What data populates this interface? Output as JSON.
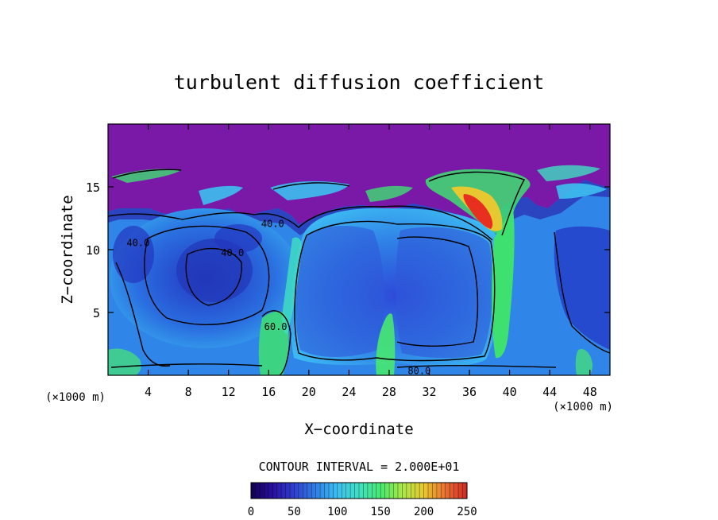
{
  "chart_data": {
    "type": "heatmap",
    "title": "turbulent diffusion coefficient",
    "xlabel": "X−coordinate",
    "ylabel": "Z−coordinate",
    "x_unit_left": "(×1000 m)",
    "x_unit_right": "(×1000 m)",
    "x_ticks": [
      4,
      8,
      12,
      16,
      20,
      24,
      28,
      32,
      36,
      40,
      44,
      48
    ],
    "y_ticks": [
      5,
      10,
      15
    ],
    "xlim": [
      0,
      50
    ],
    "ylim": [
      0,
      20
    ],
    "contour_interval_text": "CONTOUR INTERVAL = 2.000E+01",
    "contour_labels": [
      {
        "text": "40.0",
        "x": 16.4,
        "z": 11.8
      },
      {
        "text": "40.0",
        "x": 12.4,
        "z": 9.5
      },
      {
        "text": "40.0",
        "x": 3.0,
        "z": 10.3
      },
      {
        "text": "60.0",
        "x": 16.7,
        "z": 3.6
      },
      {
        "text": "80.0",
        "x": 31.0,
        "z": 0.1
      }
    ],
    "colorbar": {
      "min": 0,
      "max": 250,
      "ticks": [
        0,
        50,
        100,
        150,
        200,
        250
      ],
      "colors": [
        "#1a0a5e",
        "#2d1fa8",
        "#3a4fd8",
        "#2f86e8",
        "#3cc0f0",
        "#3fe0c0",
        "#48e870",
        "#a8e848",
        "#e8c830",
        "#e87030",
        "#d83030"
      ]
    },
    "colors": {
      "stratosphere": "#7a18a8",
      "core_blue": "#2a42c8",
      "mid_blue": "#1e78e0",
      "light_blue": "#3ab8f0",
      "green": "#3ee070",
      "red": "#e83020"
    }
  }
}
